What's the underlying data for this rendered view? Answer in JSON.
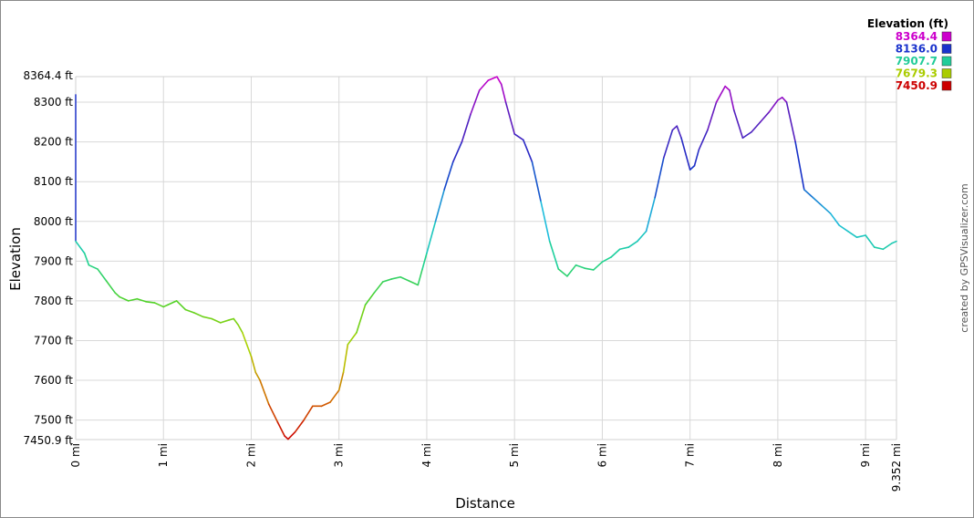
{
  "chart_data": {
    "type": "line",
    "xlabel": "Distance",
    "ylabel": "Elevation",
    "xlim": [
      0,
      9.352
    ],
    "ylim": [
      7450.9,
      8364.4
    ],
    "y_ticks": [
      7500,
      7600,
      7700,
      7800,
      7900,
      8000,
      8100,
      8200,
      8300
    ],
    "y_tick_labels": [
      "7500 ft",
      "7600 ft",
      "7700 ft",
      "7800 ft",
      "7900 ft",
      "8000 ft",
      "8100 ft",
      "8200 ft",
      "8300 ft"
    ],
    "y_min_label": "7450.9 ft",
    "y_max_label": "8364.4 ft",
    "x_ticks": [
      0,
      1,
      2,
      3,
      4,
      5,
      6,
      7,
      8,
      9
    ],
    "x_tick_labels": [
      "0 mi",
      "1 mi",
      "2 mi",
      "3 mi",
      "4 mi",
      "5 mi",
      "6 mi",
      "7 mi",
      "8 mi",
      "9 mi"
    ],
    "x_max_label": "9.352 mi",
    "grid": true,
    "legend": {
      "title": "Elevation (ft)",
      "placement": "top-right",
      "entries": [
        {
          "label": "8364.4",
          "color": "#cc00cc"
        },
        {
          "label": "8136.0",
          "color": "#1a33cc"
        },
        {
          "label": "7907.7",
          "color": "#22cc99"
        },
        {
          "label": "7679.3",
          "color": "#aacc00"
        },
        {
          "label": "7450.9",
          "color": "#cc0000"
        }
      ]
    },
    "credit": "created by GPSVisualizer.com",
    "series": [
      {
        "x": [
          0,
          0.1,
          0.15,
          0.25,
          0.35,
          0.45,
          0.5,
          0.6,
          0.7,
          0.8,
          0.9,
          1.0,
          1.05,
          1.15,
          1.25,
          1.35,
          1.45,
          1.55,
          1.65,
          1.75,
          1.8,
          1.85,
          1.9,
          2.0,
          2.05,
          2.1,
          2.2,
          2.3,
          2.38,
          2.42,
          2.5,
          2.6,
          2.7,
          2.8,
          2.9,
          3.0,
          3.05,
          3.1,
          3.2,
          3.3,
          3.4,
          3.5,
          3.6,
          3.7,
          3.8,
          3.9,
          3.95,
          4.0,
          4.1,
          4.2,
          4.3,
          4.4,
          4.5,
          4.6,
          4.7,
          4.8,
          4.85,
          4.9,
          5.0,
          5.1,
          5.2,
          5.3,
          5.4,
          5.5,
          5.6,
          5.7,
          5.8,
          5.9,
          6.0,
          6.1,
          6.2,
          6.3,
          6.4,
          6.5,
          6.6,
          6.7,
          6.8,
          6.85,
          6.9,
          7.0,
          7.05,
          7.1,
          7.2,
          7.3,
          7.4,
          7.45,
          7.5,
          7.6,
          7.7,
          7.8,
          7.9,
          8.0,
          8.05,
          8.1,
          8.2,
          8.3,
          8.4,
          8.5,
          8.6,
          8.7,
          8.8,
          8.9,
          9.0,
          9.1,
          9.2,
          9.3,
          9.352
        ],
        "y": [
          7950,
          7920,
          7890,
          7880,
          7850,
          7820,
          7810,
          7800,
          7805,
          7798,
          7795,
          7785,
          7790,
          7800,
          7778,
          7770,
          7760,
          7755,
          7745,
          7752,
          7755,
          7740,
          7720,
          7660,
          7620,
          7600,
          7540,
          7495,
          7460,
          7452,
          7470,
          7500,
          7535,
          7535,
          7545,
          7575,
          7620,
          7690,
          7720,
          7790,
          7820,
          7848,
          7855,
          7860,
          7850,
          7840,
          7880,
          7920,
          8000,
          8080,
          8150,
          8200,
          8270,
          8330,
          8355,
          8364,
          8345,
          8300,
          8220,
          8205,
          8150,
          8050,
          7950,
          7880,
          7862,
          7890,
          7882,
          7878,
          7898,
          7910,
          7930,
          7935,
          7950,
          7975,
          8060,
          8160,
          8230,
          8240,
          8210,
          8130,
          8140,
          8180,
          8230,
          8300,
          8340,
          8330,
          8280,
          8210,
          8225,
          8250,
          8275,
          8305,
          8312,
          8300,
          8200,
          8080,
          8060,
          8040,
          8020,
          7990,
          7975,
          7960,
          7965,
          7935,
          7930,
          7945,
          7950
        ]
      }
    ]
  }
}
